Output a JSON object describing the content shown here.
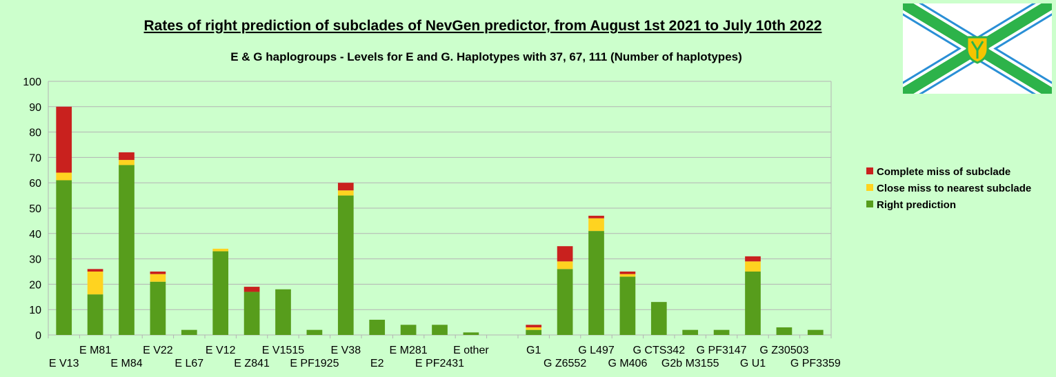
{
  "chart_data": {
    "type": "bar",
    "stacked": true,
    "title": "Rates of right prediction of subclades of NevGen predictor, from August 1st 2021 to July 10th 2022",
    "subtitle": "E & G haplogroups - Levels for E and G. Haplotypes with 37, 67, 111 (Number of haplotypes)",
    "xlabel": "",
    "ylabel": "",
    "ylim": [
      0,
      100
    ],
    "yticks": [
      0,
      10,
      20,
      30,
      40,
      50,
      60,
      70,
      80,
      90,
      100
    ],
    "grid": true,
    "legend_position": "right",
    "categories": [
      "E V13",
      "E M81",
      "E M84",
      "E V22",
      "E L67",
      "E V12",
      "E Z841",
      "E V1515",
      "E PF1925",
      "E V38",
      "E2",
      "E M281",
      "E PF2431",
      "E other",
      "",
      "G1",
      "G Z6552",
      "G L497",
      "G M406",
      "G CTS342",
      "G2b M3155",
      "G PF3147",
      "G U1",
      "G Z30503",
      "G PF3359"
    ],
    "series": [
      {
        "name": "Right prediction",
        "color": "#579d1c",
        "values": [
          61,
          16,
          67,
          21,
          2,
          33,
          17,
          18,
          2,
          55,
          6,
          4,
          4,
          1,
          0,
          2,
          26,
          41,
          23,
          13,
          2,
          2,
          25,
          3,
          2
        ]
      },
      {
        "name": "Close miss to nearest subclade",
        "color": "#ffd320",
        "values": [
          3,
          9,
          2,
          3,
          0,
          1,
          0,
          0,
          0,
          2,
          0,
          0,
          0,
          0,
          0,
          1,
          3,
          5,
          1,
          0,
          0,
          0,
          4,
          0,
          0
        ]
      },
      {
        "name": "Complete miss of subclade",
        "color": "#c9211e",
        "values": [
          26,
          1,
          3,
          1,
          0,
          0,
          2,
          0,
          0,
          3,
          0,
          0,
          0,
          0,
          0,
          1,
          6,
          1,
          1,
          0,
          0,
          0,
          2,
          0,
          0
        ]
      }
    ],
    "legend_order": [
      "Complete miss of subclade",
      "Close miss to nearest subclade",
      "Right prediction"
    ]
  },
  "colors": {
    "background": "#ccffcc",
    "grid": "#b3b3b3",
    "flag_green": "#2db34a",
    "flag_blue": "#2a8fd6",
    "flag_yellow": "#f5c400"
  },
  "logo": {
    "icon": "flag-logo-icon"
  }
}
